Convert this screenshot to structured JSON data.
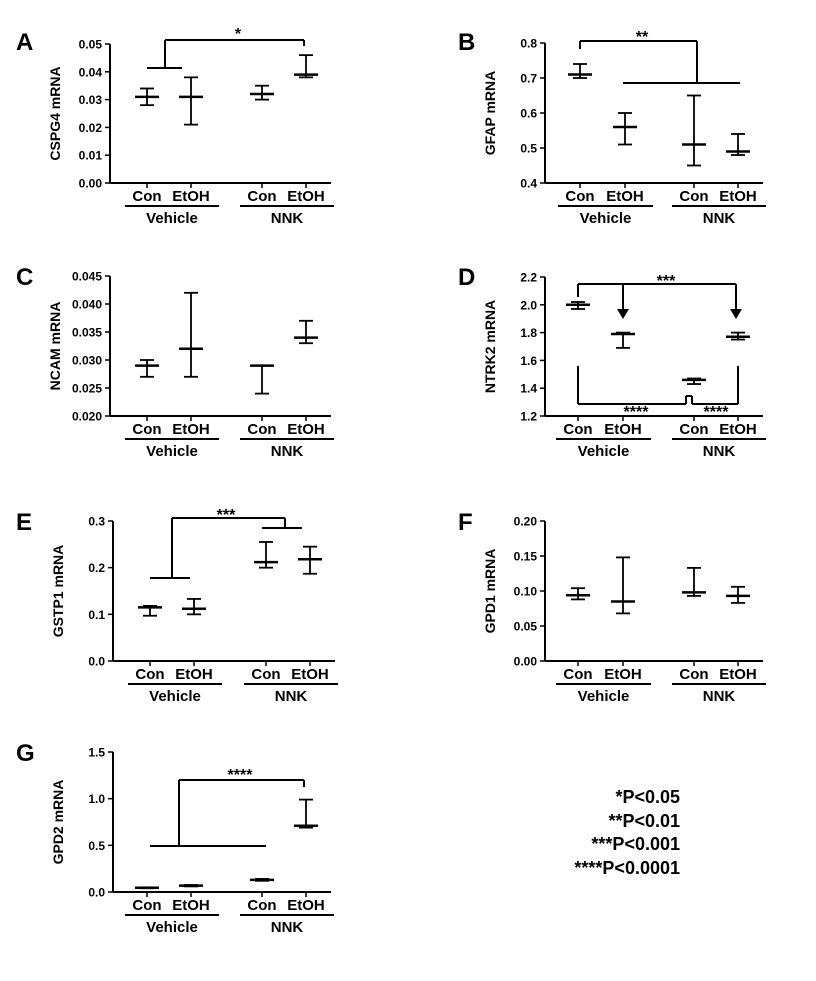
{
  "group_labels": {
    "con": "Con",
    "etoh": "EtOH",
    "vehicle": "Vehicle",
    "nnk": "NNK"
  },
  "significance_legend": [
    "*P<0.05",
    "**P<0.01",
    "***P<0.001",
    "****P<0.0001"
  ],
  "chart_data": [
    {
      "panel": "A",
      "type": "scatter",
      "ylabel": "CSPG4 mRNA",
      "ylim": [
        0,
        0.05
      ],
      "yticks": [
        0.0,
        0.01,
        0.02,
        0.03,
        0.04,
        0.05
      ],
      "ytick_labels": [
        "0.00",
        "0.01",
        "0.02",
        "0.03",
        "0.04",
        "0.05"
      ],
      "categories": [
        "Con Vehicle",
        "EtOH Vehicle",
        "Con NNK",
        "EtOH NNK"
      ],
      "mean": [
        0.031,
        0.031,
        0.032,
        0.039
      ],
      "err_low": [
        0.028,
        0.021,
        0.03,
        0.038
      ],
      "err_high": [
        0.034,
        0.038,
        0.035,
        0.046
      ],
      "annotation": "*"
    },
    {
      "panel": "B",
      "type": "scatter",
      "ylabel": "GFAP mRNA",
      "ylim": [
        0.4,
        0.8
      ],
      "yticks": [
        0.4,
        0.5,
        0.6,
        0.7,
        0.8
      ],
      "ytick_labels": [
        "0.4",
        "0.5",
        "0.6",
        "0.7",
        "0.8"
      ],
      "categories": [
        "Con Vehicle",
        "EtOH Vehicle",
        "Con NNK",
        "EtOH NNK"
      ],
      "mean": [
        0.71,
        0.56,
        0.51,
        0.49
      ],
      "err_low": [
        0.7,
        0.51,
        0.45,
        0.48
      ],
      "err_high": [
        0.74,
        0.6,
        0.65,
        0.54
      ],
      "annotation": "**"
    },
    {
      "panel": "C",
      "type": "scatter",
      "ylabel": "NCAM mRNA",
      "ylim": [
        0.02,
        0.045
      ],
      "yticks": [
        0.02,
        0.025,
        0.03,
        0.035,
        0.04,
        0.045
      ],
      "ytick_labels": [
        "0.020",
        "0.025",
        "0.030",
        "0.035",
        "0.040",
        "0.045"
      ],
      "categories": [
        "Con Vehicle",
        "EtOH Vehicle",
        "Con NNK",
        "EtOH NNK"
      ],
      "mean": [
        0.029,
        0.032,
        0.029,
        0.034
      ],
      "err_low": [
        0.027,
        0.027,
        0.024,
        0.033
      ],
      "err_high": [
        0.03,
        0.042,
        0.029,
        0.037
      ],
      "annotation": ""
    },
    {
      "panel": "D",
      "type": "scatter",
      "ylabel": "NTRK2 mRNA",
      "ylim": [
        1.2,
        2.2
      ],
      "yticks": [
        1.2,
        1.4,
        1.6,
        1.8,
        2.0,
        2.2
      ],
      "ytick_labels": [
        "1.2",
        "1.4",
        "1.6",
        "1.8",
        "2.0",
        "2.2"
      ],
      "categories": [
        "Con Vehicle",
        "EtOH Vehicle",
        "Con NNK",
        "EtOH NNK"
      ],
      "mean": [
        2.0,
        1.79,
        1.46,
        1.77
      ],
      "err_low": [
        1.97,
        1.69,
        1.43,
        1.75
      ],
      "err_high": [
        2.02,
        1.8,
        1.47,
        1.8
      ],
      "annotation": "***",
      "annotation_bottom": [
        "****",
        "****"
      ]
    },
    {
      "panel": "E",
      "type": "scatter",
      "ylabel": "GSTP1 mRNA",
      "ylim": [
        0,
        0.3
      ],
      "yticks": [
        0.0,
        0.1,
        0.2,
        0.3
      ],
      "ytick_labels": [
        "0.0",
        "0.1",
        "0.2",
        "0.3"
      ],
      "categories": [
        "Con Vehicle",
        "EtOH Vehicle",
        "Con NNK",
        "EtOH NNK"
      ],
      "mean": [
        0.115,
        0.112,
        0.212,
        0.218
      ],
      "err_low": [
        0.097,
        0.1,
        0.2,
        0.187
      ],
      "err_high": [
        0.118,
        0.133,
        0.255,
        0.245
      ],
      "annotation": "***"
    },
    {
      "panel": "F",
      "type": "scatter",
      "ylabel": "GPD1 mRNA",
      "ylim": [
        0,
        0.2
      ],
      "yticks": [
        0.0,
        0.05,
        0.1,
        0.15,
        0.2
      ],
      "ytick_labels": [
        "0.00",
        "0.05",
        "0.10",
        "0.15",
        "0.20"
      ],
      "categories": [
        "Con Vehicle",
        "EtOH Vehicle",
        "Con NNK",
        "EtOH NNK"
      ],
      "mean": [
        0.094,
        0.085,
        0.098,
        0.093
      ],
      "err_low": [
        0.088,
        0.068,
        0.093,
        0.083
      ],
      "err_high": [
        0.104,
        0.148,
        0.133,
        0.106
      ],
      "annotation": ""
    },
    {
      "panel": "G",
      "type": "scatter",
      "ylabel": "GPD2 mRNA",
      "ylim": [
        0,
        1.5
      ],
      "yticks": [
        0.0,
        0.5,
        1.0,
        1.5
      ],
      "ytick_labels": [
        "0.0",
        "0.5",
        "1.0",
        "1.5"
      ],
      "categories": [
        "Con Vehicle",
        "EtOH Vehicle",
        "Con NNK",
        "EtOH NNK"
      ],
      "mean": [
        0.045,
        0.068,
        0.13,
        0.71
      ],
      "err_low": [
        0.04,
        0.06,
        0.12,
        0.69
      ],
      "err_high": [
        0.05,
        0.075,
        0.14,
        0.99
      ],
      "annotation": "****"
    }
  ]
}
